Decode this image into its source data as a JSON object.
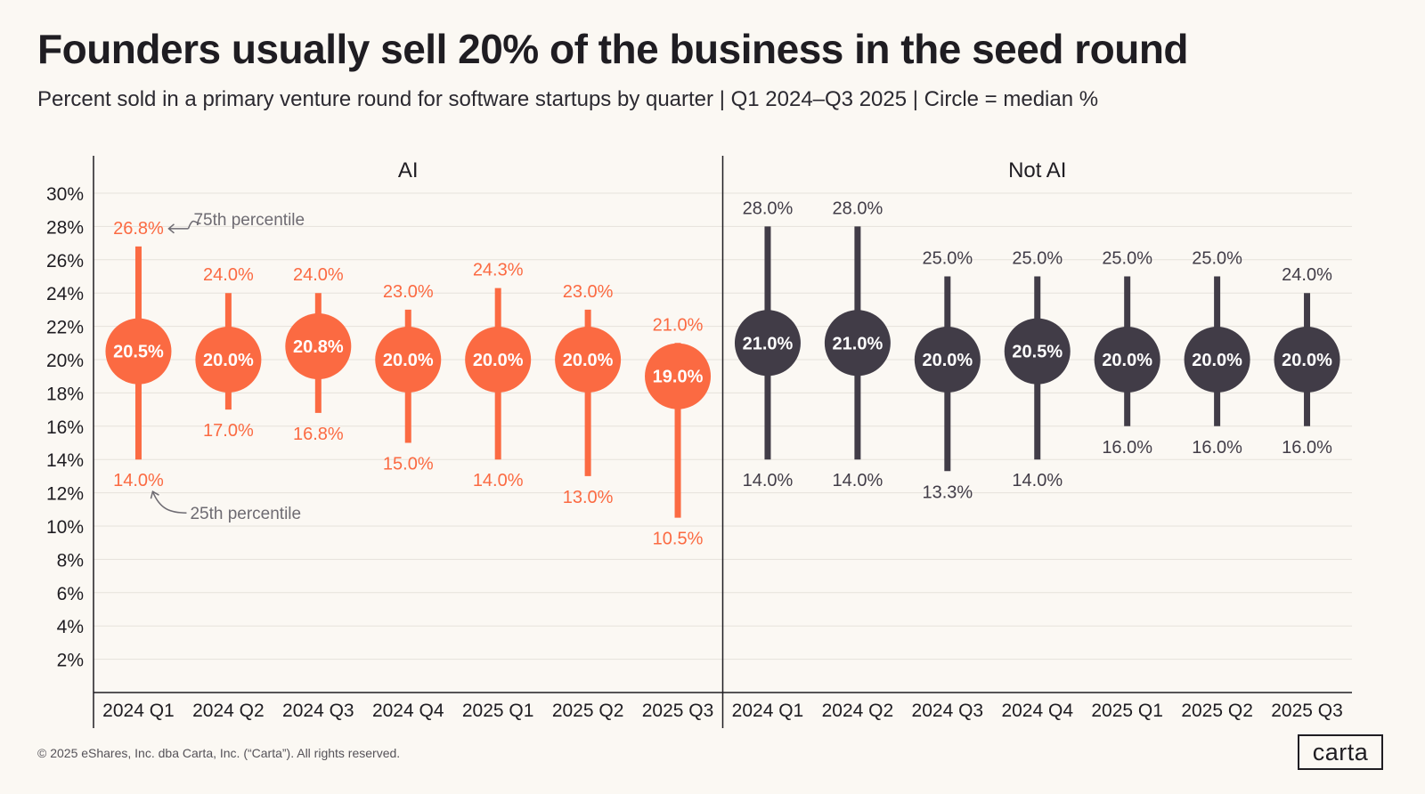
{
  "title": "Founders usually sell 20% of the business in the seed round",
  "subtitle": "Percent sold in a primary venture round for software startups by quarter | Q1 2024–Q3 2025 | Circle = median %",
  "footer": "© 2025 eShares, Inc. dba Carta, Inc. (“Carta”). All rights reserved.",
  "logo_text": "carta",
  "colors": {
    "ai": "#fb6a42",
    "not_ai": "#413c47",
    "grid": "#e6e2db",
    "axis": "#1f1d22",
    "annotation": "#6e6b72"
  },
  "chart_data": {
    "type": "range-dot",
    "ylim": [
      0,
      30
    ],
    "yticks": [
      2,
      4,
      6,
      8,
      10,
      12,
      14,
      16,
      18,
      20,
      22,
      24,
      26,
      28,
      30
    ],
    "ytick_labels": [
      "2%",
      "4%",
      "6%",
      "8%",
      "10%",
      "12%",
      "14%",
      "16%",
      "18%",
      "20%",
      "22%",
      "24%",
      "26%",
      "28%",
      "30%"
    ],
    "categories": [
      "2024 Q1",
      "2024 Q2",
      "2024 Q3",
      "2024 Q4",
      "2025 Q1",
      "2025 Q2",
      "2025 Q3"
    ],
    "annotations": {
      "p75": "75th percentile",
      "p25": "25th percentile"
    },
    "panels": [
      {
        "name": "AI",
        "color_key": "ai",
        "p25": [
          14.0,
          17.0,
          16.8,
          15.0,
          14.0,
          13.0,
          10.5
        ],
        "median": [
          20.5,
          20.0,
          20.8,
          20.0,
          20.0,
          20.0,
          19.0
        ],
        "p75": [
          26.8,
          24.0,
          24.0,
          23.0,
          24.3,
          23.0,
          21.0
        ],
        "labels": {
          "p25": [
            "14.0%",
            "17.0%",
            "16.8%",
            "15.0%",
            "14.0%",
            "13.0%",
            "10.5%"
          ],
          "median": [
            "20.5%",
            "20.0%",
            "20.8%",
            "20.0%",
            "20.0%",
            "20.0%",
            "19.0%"
          ],
          "p75": [
            "26.8%",
            "24.0%",
            "24.0%",
            "23.0%",
            "24.3%",
            "23.0%",
            "21.0%"
          ]
        }
      },
      {
        "name": "Not AI",
        "color_key": "not_ai",
        "p25": [
          14.0,
          14.0,
          13.3,
          14.0,
          16.0,
          16.0,
          16.0
        ],
        "median": [
          21.0,
          21.0,
          20.0,
          20.5,
          20.0,
          20.0,
          20.0
        ],
        "p75": [
          28.0,
          28.0,
          25.0,
          25.0,
          25.0,
          25.0,
          24.0
        ],
        "labels": {
          "p25": [
            "14.0%",
            "14.0%",
            "13.3%",
            "14.0%",
            "16.0%",
            "16.0%",
            "16.0%"
          ],
          "median": [
            "21.0%",
            "21.0%",
            "20.0%",
            "20.5%",
            "20.0%",
            "20.0%",
            "20.0%"
          ],
          "p75": [
            "28.0%",
            "28.0%",
            "25.0%",
            "25.0%",
            "25.0%",
            "25.0%",
            "24.0%"
          ]
        }
      }
    ]
  }
}
